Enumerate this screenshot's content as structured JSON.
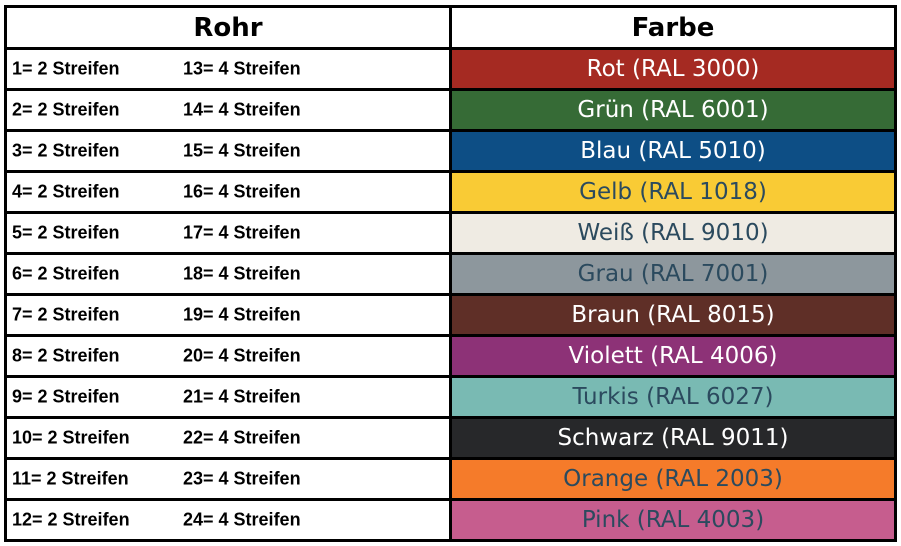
{
  "header": {
    "rohr": "Rohr",
    "farbe": "Farbe"
  },
  "rows": [
    {
      "left": "1= 2 Streifen",
      "right": "13= 4 Streifen",
      "color_label": "Rot (RAL 3000)",
      "bg": "#a52a22",
      "fg": "#ffffff"
    },
    {
      "left": "2= 2 Streifen",
      "right": "14= 4 Streifen",
      "color_label": "Grün (RAL 6001)",
      "bg": "#366b36",
      "fg": "#ffffff"
    },
    {
      "left": "3= 2 Streifen",
      "right": "15= 4 Streifen",
      "color_label": "Blau (RAL 5010)",
      "bg": "#0d4e85",
      "fg": "#ffffff"
    },
    {
      "left": "4= 2 Streifen",
      "right": "16= 4 Streifen",
      "color_label": "Gelb (RAL 1018)",
      "bg": "#f9cb35",
      "fg": "#2b4a5e"
    },
    {
      "left": "5= 2 Streifen",
      "right": "17= 4 Streifen",
      "color_label": "Weiß (RAL 9010)",
      "bg": "#efebe3",
      "fg": "#2b4a5e"
    },
    {
      "left": "6= 2 Streifen",
      "right": "18= 4 Streifen",
      "color_label": "Grau (RAL 7001)",
      "bg": "#8d979d",
      "fg": "#2b4a5e"
    },
    {
      "left": "7= 2 Streifen",
      "right": "19= 4 Streifen",
      "color_label": "Braun (RAL 8015)",
      "bg": "#5f2f27",
      "fg": "#ffffff"
    },
    {
      "left": "8= 2 Streifen",
      "right": "20= 4 Streifen",
      "color_label": "Violett (RAL 4006)",
      "bg": "#8d3277",
      "fg": "#ffffff"
    },
    {
      "left": "9= 2 Streifen",
      "right": "21= 4 Streifen",
      "color_label": "Turkis (RAL 6027)",
      "bg": "#79bab3",
      "fg": "#2b4a5e"
    },
    {
      "left": "10= 2 Streifen",
      "right": "22= 4 Streifen",
      "color_label": "Schwarz (RAL 9011)",
      "bg": "#27282a",
      "fg": "#ffffff"
    },
    {
      "left": "11= 2 Streifen",
      "right": "23= 4 Streifen",
      "color_label": "Orange (RAL 2003)",
      "bg": "#f57b2a",
      "fg": "#2b4a5e"
    },
    {
      "left": "12= 2 Streifen",
      "right": "24= 4 Streifen",
      "color_label": "Pink (RAL 4003)",
      "bg": "#c65d8e",
      "fg": "#2b4a5e"
    }
  ]
}
